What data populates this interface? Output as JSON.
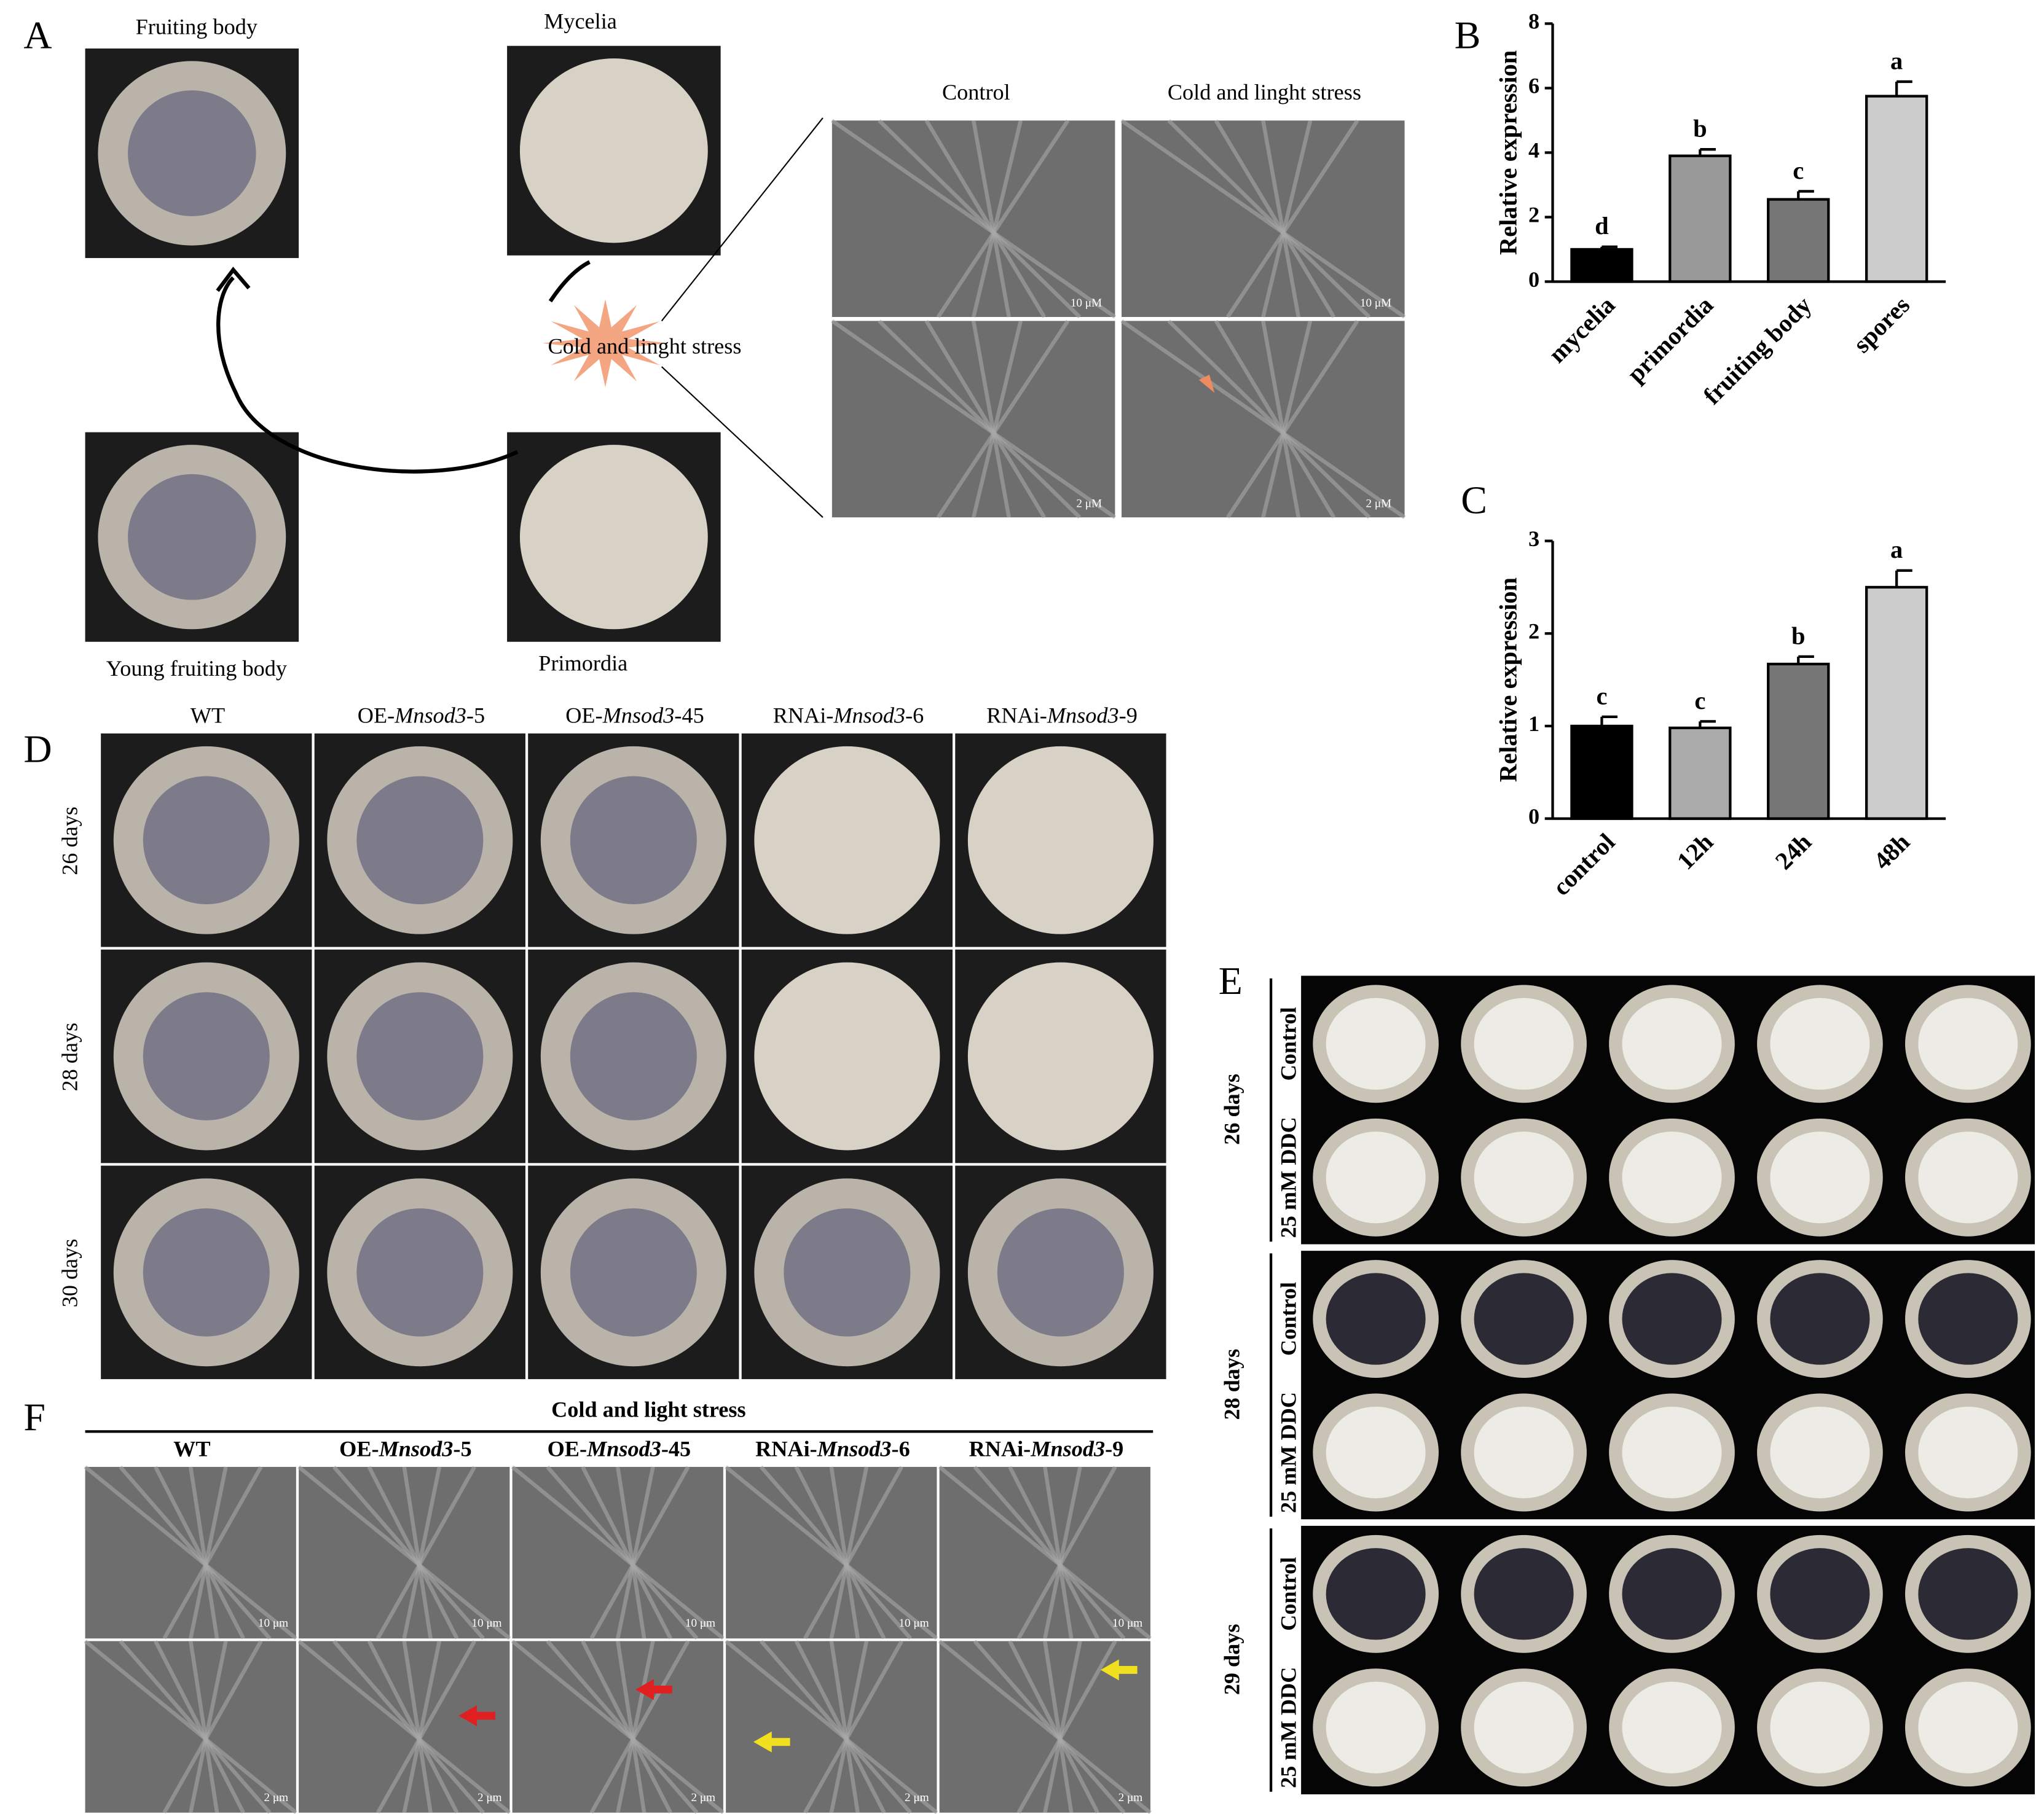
{
  "panel_a": {
    "label": "A",
    "stages": [
      "Fruiting body",
      "Mycelia",
      "Young fruiting body",
      "Primordia"
    ],
    "stress": "Cold and linght stress",
    "sem_headings": [
      "Control",
      "Cold and linght stress"
    ],
    "scale_bars": [
      "10 μM",
      "10 μM",
      "2 μM",
      "2 μM"
    ]
  },
  "chart_data": [
    {
      "type": "bar",
      "panel": "B",
      "y_label": "Relative expression",
      "categories": [
        "mycelia",
        "primordia",
        "fruiting body",
        "spores"
      ],
      "values": [
        1.0,
        3.9,
        2.55,
        5.75
      ],
      "errors": [
        0.08,
        0.2,
        0.25,
        0.45
      ],
      "annotations": [
        "d",
        "b",
        "c",
        "a"
      ],
      "colors": [
        "#000000",
        "#999999",
        "#777777",
        "#cccccc"
      ],
      "ylim": [
        0,
        8
      ],
      "yticks": [
        0,
        2,
        4,
        6,
        8
      ]
    },
    {
      "type": "bar",
      "panel": "C",
      "y_label": "Relative expression",
      "categories": [
        "control",
        "12h",
        "24h",
        "48h"
      ],
      "values": [
        1.0,
        0.98,
        1.67,
        2.5
      ],
      "errors": [
        0.1,
        0.07,
        0.08,
        0.18
      ],
      "annotations": [
        "c",
        "c",
        "b",
        "a"
      ],
      "colors": [
        "#000000",
        "#aaaaaa",
        "#777777",
        "#cccccc"
      ],
      "ylim": [
        0,
        3
      ],
      "yticks": [
        0,
        1,
        2,
        3
      ]
    }
  ],
  "panel_d": {
    "label": "D",
    "columns": [
      {
        "prefix": "WT"
      },
      {
        "prefix": "OE-",
        "gene": "Mnsod3",
        "suffix": "-5"
      },
      {
        "prefix": "OE-",
        "gene": "Mnsod3",
        "suffix": "-45"
      },
      {
        "prefix": "RNAi-",
        "gene": "Mnsod3",
        "suffix": "-6"
      },
      {
        "prefix": "RNAi-",
        "gene": "Mnsod3",
        "suffix": "-9"
      }
    ],
    "rows": [
      "26 days",
      "28 days",
      "30 days"
    ]
  },
  "panel_e": {
    "label": "E",
    "rows": [
      {
        "days": "26 days",
        "treatments": [
          "Control",
          "25 mM DDC"
        ]
      },
      {
        "days": "28 days",
        "treatments": [
          "Control",
          "25 mM DDC"
        ]
      },
      {
        "days": "29 days",
        "treatments": [
          "Control",
          "25 mM DDC"
        ]
      }
    ]
  },
  "panel_f": {
    "label": "F",
    "title": "Cold and light stress",
    "columns": [
      {
        "prefix": "WT"
      },
      {
        "prefix": "OE-",
        "gene": "Mnsod3",
        "suffix": "-5"
      },
      {
        "prefix": "OE-",
        "gene": "Mnsod3",
        "suffix": "-45"
      },
      {
        "prefix": "RNAi-",
        "gene": "Mnsod3",
        "suffix": "-6"
      },
      {
        "prefix": "RNAi-",
        "gene": "Mnsod3",
        "suffix": "-9"
      }
    ],
    "scale_bars": [
      "10 μm",
      "2 μm"
    ]
  }
}
